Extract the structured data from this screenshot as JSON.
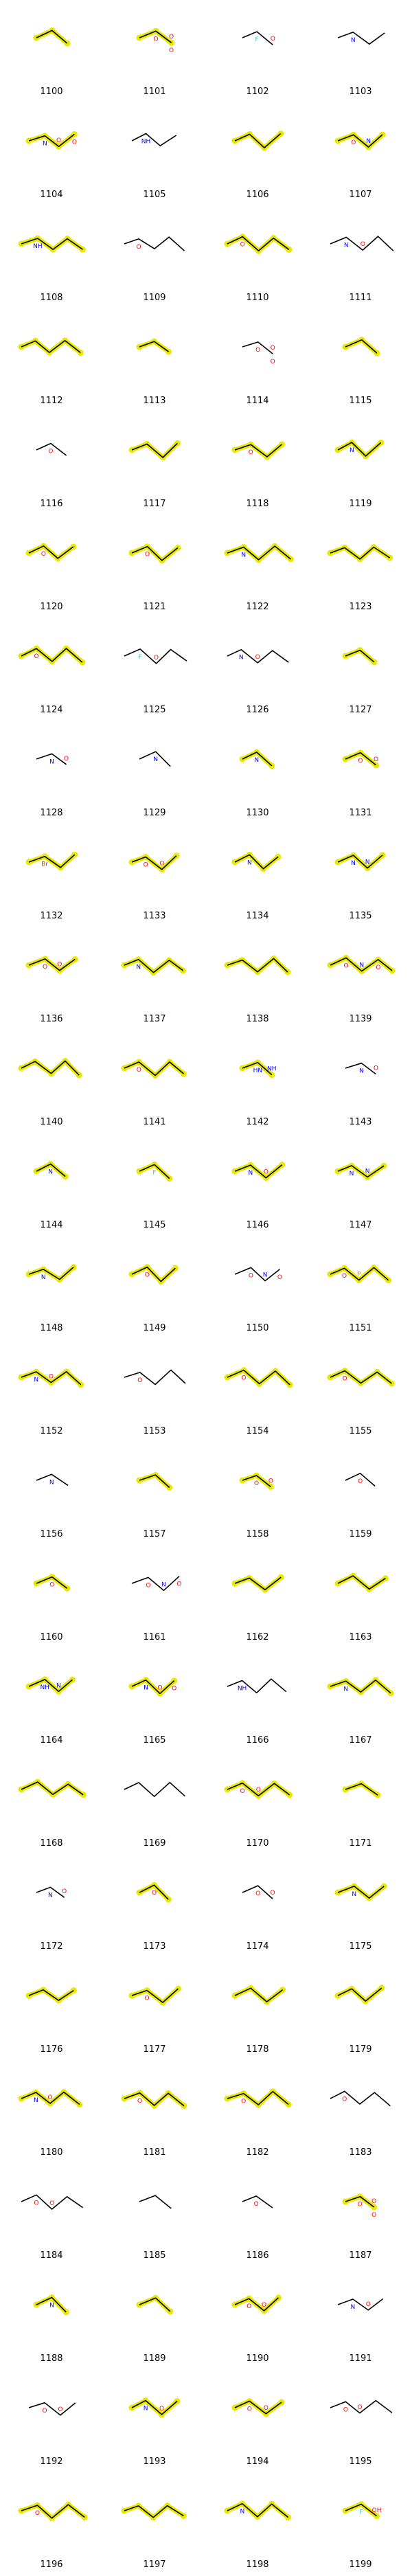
{
  "title": "",
  "colors": {
    "bond": "#000000",
    "highlight": "#e8e800",
    "O": "#ff0000",
    "N": "#0000ff",
    "S": "#ccaa00",
    "F": "#33cccc",
    "P": "#ff8000"
  },
  "molecules": [
    {
      "id": "1100",
      "atoms": [],
      "hl": true
    },
    {
      "id": "1101",
      "atoms": [
        "O",
        "O",
        "O"
      ],
      "hl": true
    },
    {
      "id": "1102",
      "atoms": [
        "F",
        "O"
      ],
      "hl": false
    },
    {
      "id": "1103",
      "atoms": [
        "N"
      ],
      "hl": false
    },
    {
      "id": "1104",
      "atoms": [
        "N",
        "O",
        "O"
      ],
      "hl": true
    },
    {
      "id": "1105",
      "atoms": [
        "NH"
      ],
      "hl": false
    },
    {
      "id": "1106",
      "atoms": [],
      "hl": true
    },
    {
      "id": "1107",
      "atoms": [
        "O",
        "N"
      ],
      "hl": true
    },
    {
      "id": "1108",
      "atoms": [
        "NH"
      ],
      "hl": true
    },
    {
      "id": "1109",
      "atoms": [
        "O"
      ],
      "hl": false
    },
    {
      "id": "1110",
      "atoms": [
        "O"
      ],
      "hl": true
    },
    {
      "id": "1111",
      "atoms": [
        "N",
        "O"
      ],
      "hl": false
    },
    {
      "id": "1112",
      "atoms": [],
      "hl": true
    },
    {
      "id": "1113",
      "atoms": [],
      "hl": true
    },
    {
      "id": "1114",
      "atoms": [
        "O",
        "O",
        "O"
      ],
      "hl": false
    },
    {
      "id": "1115",
      "atoms": [],
      "hl": true
    },
    {
      "id": "1116",
      "atoms": [
        "O"
      ],
      "hl": false
    },
    {
      "id": "1117",
      "atoms": [],
      "hl": true
    },
    {
      "id": "1118",
      "atoms": [
        "O"
      ],
      "hl": true
    },
    {
      "id": "1119",
      "atoms": [
        "N"
      ],
      "hl": true
    },
    {
      "id": "1120",
      "atoms": [
        "O"
      ],
      "hl": true
    },
    {
      "id": "1121",
      "atoms": [
        "O"
      ],
      "hl": true
    },
    {
      "id": "1122",
      "atoms": [
        "N"
      ],
      "hl": true
    },
    {
      "id": "1123",
      "atoms": [],
      "hl": true
    },
    {
      "id": "1124",
      "atoms": [
        "O"
      ],
      "hl": true
    },
    {
      "id": "1125",
      "atoms": [
        "F",
        "O"
      ],
      "hl": false
    },
    {
      "id": "1126",
      "atoms": [
        "N",
        "O"
      ],
      "hl": false
    },
    {
      "id": "1127",
      "atoms": [],
      "hl": true
    },
    {
      "id": "1128",
      "atoms": [
        "N",
        "O"
      ],
      "hl": false
    },
    {
      "id": "1129",
      "atoms": [
        "N"
      ],
      "hl": false
    },
    {
      "id": "1130",
      "atoms": [
        "N"
      ],
      "hl": true
    },
    {
      "id": "1131",
      "atoms": [
        "O",
        "O"
      ],
      "hl": true
    },
    {
      "id": "1132",
      "atoms": [
        "Br"
      ],
      "hl": true
    },
    {
      "id": "1133",
      "atoms": [
        "O",
        "O"
      ],
      "hl": true
    },
    {
      "id": "1134",
      "atoms": [
        "N"
      ],
      "hl": true
    },
    {
      "id": "1135",
      "atoms": [
        "N",
        "N"
      ],
      "hl": true
    },
    {
      "id": "1136",
      "atoms": [
        "O",
        "O"
      ],
      "hl": true
    },
    {
      "id": "1137",
      "atoms": [
        "N"
      ],
      "hl": true
    },
    {
      "id": "1138",
      "atoms": [],
      "hl": true
    },
    {
      "id": "1139",
      "atoms": [
        "O",
        "N",
        "O"
      ],
      "hl": true
    },
    {
      "id": "1140",
      "atoms": [],
      "hl": true
    },
    {
      "id": "1141",
      "atoms": [
        "O"
      ],
      "hl": true
    },
    {
      "id": "1142",
      "atoms": [
        "HN",
        "NH"
      ],
      "hl": true
    },
    {
      "id": "1143",
      "atoms": [
        "N",
        "O"
      ],
      "hl": false
    },
    {
      "id": "1144",
      "atoms": [
        "N"
      ],
      "hl": true
    },
    {
      "id": "1145",
      "atoms": [
        "F"
      ],
      "hl": true
    },
    {
      "id": "1146",
      "atoms": [
        "N",
        "O"
      ],
      "hl": true
    },
    {
      "id": "1147",
      "atoms": [
        "N",
        "N"
      ],
      "hl": true
    },
    {
      "id": "1148",
      "atoms": [
        "N"
      ],
      "hl": true
    },
    {
      "id": "1149",
      "atoms": [
        "O"
      ],
      "hl": true
    },
    {
      "id": "1150",
      "atoms": [
        "O",
        "N",
        "O"
      ],
      "hl": false
    },
    {
      "id": "1151",
      "atoms": [
        "O",
        "P"
      ],
      "hl": true
    },
    {
      "id": "1152",
      "atoms": [
        "N",
        "O"
      ],
      "hl": true
    },
    {
      "id": "1153",
      "atoms": [
        "O"
      ],
      "hl": false
    },
    {
      "id": "1154",
      "atoms": [
        "O"
      ],
      "hl": true
    },
    {
      "id": "1155",
      "atoms": [
        "O"
      ],
      "hl": true
    },
    {
      "id": "1156",
      "atoms": [
        "N"
      ],
      "hl": false
    },
    {
      "id": "1157",
      "atoms": [],
      "hl": true
    },
    {
      "id": "1158",
      "atoms": [
        "O",
        "O"
      ],
      "hl": true
    },
    {
      "id": "1159",
      "atoms": [
        "O"
      ],
      "hl": false
    },
    {
      "id": "1160",
      "atoms": [
        "O"
      ],
      "hl": true
    },
    {
      "id": "1161",
      "atoms": [
        "O",
        "N",
        "O"
      ],
      "hl": false
    },
    {
      "id": "1162",
      "atoms": [],
      "hl": true
    },
    {
      "id": "1163",
      "atoms": [],
      "hl": true
    },
    {
      "id": "1164",
      "atoms": [
        "NH",
        "N"
      ],
      "hl": true
    },
    {
      "id": "1165",
      "atoms": [
        "N",
        "O",
        "O"
      ],
      "hl": true
    },
    {
      "id": "1166",
      "atoms": [
        "NH"
      ],
      "hl": false
    },
    {
      "id": "1167",
      "atoms": [
        "N"
      ],
      "hl": true
    },
    {
      "id": "1168",
      "atoms": [],
      "hl": true
    },
    {
      "id": "1169",
      "atoms": [],
      "hl": false
    },
    {
      "id": "1170",
      "atoms": [
        "O",
        "O"
      ],
      "hl": true
    },
    {
      "id": "1171",
      "atoms": [],
      "hl": true
    },
    {
      "id": "1172",
      "atoms": [
        "N",
        "O"
      ],
      "hl": false
    },
    {
      "id": "1173",
      "atoms": [
        "O"
      ],
      "hl": true
    },
    {
      "id": "1174",
      "atoms": [
        "O",
        "O"
      ],
      "hl": false
    },
    {
      "id": "1175",
      "atoms": [
        "N"
      ],
      "hl": true
    },
    {
      "id": "1176",
      "atoms": [],
      "hl": true
    },
    {
      "id": "1177",
      "atoms": [
        "O"
      ],
      "hl": true
    },
    {
      "id": "1178",
      "atoms": [],
      "hl": true
    },
    {
      "id": "1179",
      "atoms": [],
      "hl": true
    },
    {
      "id": "1180",
      "atoms": [
        "N",
        "O"
      ],
      "hl": true
    },
    {
      "id": "1181",
      "atoms": [
        "O"
      ],
      "hl": true
    },
    {
      "id": "1182",
      "atoms": [
        "O"
      ],
      "hl": true
    },
    {
      "id": "1183",
      "atoms": [
        "O"
      ],
      "hl": false
    },
    {
      "id": "1184",
      "atoms": [
        "O",
        "O"
      ],
      "hl": false
    },
    {
      "id": "1185",
      "atoms": [],
      "hl": false
    },
    {
      "id": "1186",
      "atoms": [
        "O"
      ],
      "hl": false
    },
    {
      "id": "1187",
      "atoms": [
        "O",
        "O",
        "O"
      ],
      "hl": true
    },
    {
      "id": "1188",
      "atoms": [
        "N"
      ],
      "hl": true
    },
    {
      "id": "1189",
      "atoms": [],
      "hl": true
    },
    {
      "id": "1190",
      "atoms": [
        "O",
        "O"
      ],
      "hl": true
    },
    {
      "id": "1191",
      "atoms": [
        "N",
        "O"
      ],
      "hl": false
    },
    {
      "id": "1192",
      "atoms": [
        "O",
        "O"
      ],
      "hl": false
    },
    {
      "id": "1193",
      "atoms": [
        "N",
        "O"
      ],
      "hl": true
    },
    {
      "id": "1194",
      "atoms": [
        "O",
        "O"
      ],
      "hl": true
    },
    {
      "id": "1195",
      "atoms": [
        "O",
        "O"
      ],
      "hl": false
    },
    {
      "id": "1196",
      "atoms": [
        "O"
      ],
      "hl": true
    },
    {
      "id": "1197",
      "atoms": [],
      "hl": true
    },
    {
      "id": "1198",
      "atoms": [
        "N"
      ],
      "hl": true
    },
    {
      "id": "1199",
      "atoms": [
        "F",
        "OH"
      ],
      "hl": true
    }
  ]
}
